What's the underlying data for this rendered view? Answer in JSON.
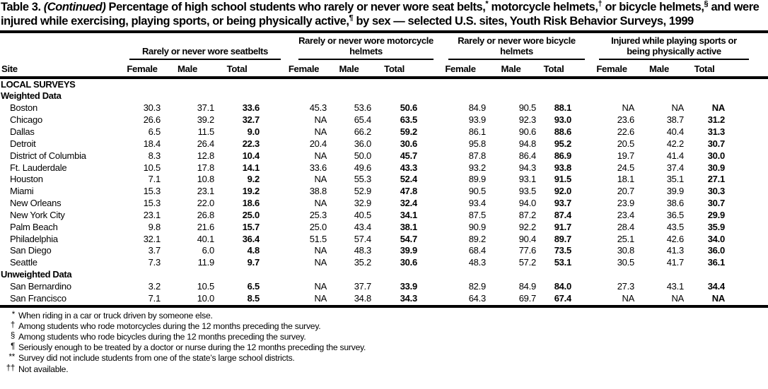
{
  "title": {
    "label": "Table 3.",
    "continued": "(Continued)",
    "segments": [
      {
        "text": " Percentage of high school students who rarely or never wore seat belts,"
      },
      {
        "sup": "*"
      },
      {
        "text": " motorcycle helmets,"
      },
      {
        "sup": "†"
      },
      {
        "text": " or bicycle helmets,"
      },
      {
        "sup": "§"
      },
      {
        "text": " and were injured while exercising, playing sports, or being physically active,"
      },
      {
        "sup": "¶"
      },
      {
        "text": " by sex — selected U.S. sites, Youth Risk Behavior Surveys, 1999"
      }
    ]
  },
  "table": {
    "site_header": "Site",
    "sub_headers": [
      "Female",
      "Male",
      "Total"
    ],
    "groups": [
      {
        "label": "Rarely or never wore seatbelts"
      },
      {
        "label": "Rarely or never wore motorcycle helmets"
      },
      {
        "label": "Rarely or never wore bicycle helmets"
      },
      {
        "label": "Injured while playing sports or being physically active"
      }
    ],
    "sections": [
      {
        "heading": "LOCAL SURVEYS",
        "rows": []
      },
      {
        "heading": "Weighted Data",
        "rows": [
          {
            "site": "Boston",
            "values": [
              "30.3",
              "37.1",
              "33.6",
              "45.3",
              "53.6",
              "50.6",
              "84.9",
              "90.5",
              "88.1",
              "NA",
              "NA",
              "NA"
            ]
          },
          {
            "site": "Chicago",
            "values": [
              "26.6",
              "39.2",
              "32.7",
              "NA",
              "65.4",
              "63.5",
              "93.9",
              "92.3",
              "93.0",
              "23.6",
              "38.7",
              "31.2"
            ]
          },
          {
            "site": "Dallas",
            "values": [
              "6.5",
              "11.5",
              "9.0",
              "NA",
              "66.2",
              "59.2",
              "86.1",
              "90.6",
              "88.6",
              "22.6",
              "40.4",
              "31.3"
            ]
          },
          {
            "site": "Detroit",
            "values": [
              "18.4",
              "26.4",
              "22.3",
              "20.4",
              "36.0",
              "30.6",
              "95.8",
              "94.8",
              "95.2",
              "20.5",
              "42.2",
              "30.7"
            ]
          },
          {
            "site": "District of Columbia",
            "values": [
              "8.3",
              "12.8",
              "10.4",
              "NA",
              "50.0",
              "45.7",
              "87.8",
              "86.4",
              "86.9",
              "19.7",
              "41.4",
              "30.0"
            ]
          },
          {
            "site": "Ft. Lauderdale",
            "values": [
              "10.5",
              "17.8",
              "14.1",
              "33.6",
              "49.6",
              "43.3",
              "93.2",
              "94.3",
              "93.8",
              "24.5",
              "37.4",
              "30.9"
            ]
          },
          {
            "site": "Houston",
            "values": [
              "7.1",
              "10.8",
              "9.2",
              "NA",
              "55.3",
              "52.4",
              "89.9",
              "93.1",
              "91.5",
              "18.1",
              "35.1",
              "27.1"
            ]
          },
          {
            "site": "Miami",
            "values": [
              "15.3",
              "23.1",
              "19.2",
              "38.8",
              "52.9",
              "47.8",
              "90.5",
              "93.5",
              "92.0",
              "20.7",
              "39.9",
              "30.3"
            ]
          },
          {
            "site": "New Orleans",
            "values": [
              "15.3",
              "22.0",
              "18.6",
              "NA",
              "32.9",
              "32.4",
              "93.4",
              "94.0",
              "93.7",
              "23.9",
              "38.6",
              "30.7"
            ]
          },
          {
            "site": "New York City",
            "values": [
              "23.1",
              "26.8",
              "25.0",
              "25.3",
              "40.5",
              "34.1",
              "87.5",
              "87.2",
              "87.4",
              "23.4",
              "36.5",
              "29.9"
            ]
          },
          {
            "site": "Palm Beach",
            "values": [
              "9.8",
              "21.6",
              "15.7",
              "25.0",
              "43.4",
              "38.1",
              "90.9",
              "92.2",
              "91.7",
              "28.4",
              "43.5",
              "35.9"
            ]
          },
          {
            "site": "Philadelphia",
            "values": [
              "32.1",
              "40.1",
              "36.4",
              "51.5",
              "57.4",
              "54.7",
              "89.2",
              "90.4",
              "89.7",
              "25.1",
              "42.6",
              "34.0"
            ]
          },
          {
            "site": "San Diego",
            "values": [
              "3.7",
              "6.0",
              "4.8",
              "NA",
              "48.3",
              "39.9",
              "68.4",
              "77.6",
              "73.5",
              "30.8",
              "41.3",
              "36.0"
            ]
          },
          {
            "site": "Seattle",
            "values": [
              "7.3",
              "11.9",
              "9.7",
              "NA",
              "35.2",
              "30.6",
              "48.3",
              "57.2",
              "53.1",
              "30.5",
              "41.7",
              "36.1"
            ]
          }
        ]
      },
      {
        "heading": "Unweighted Data",
        "rows": [
          {
            "site": "San Bernardino",
            "values": [
              "3.2",
              "10.5",
              "6.5",
              "NA",
              "37.7",
              "33.9",
              "82.9",
              "84.9",
              "84.0",
              "27.3",
              "43.1",
              "34.4"
            ]
          },
          {
            "site": "San Francisco",
            "values": [
              "7.1",
              "10.0",
              "8.5",
              "NA",
              "34.8",
              "34.3",
              "64.3",
              "69.7",
              "67.4",
              "NA",
              "NA",
              "NA"
            ]
          }
        ]
      }
    ]
  },
  "footnotes": [
    {
      "marker": "*",
      "text": "When riding in a car or truck driven by someone else."
    },
    {
      "marker": "†",
      "text": "Among students who rode motorcycles during the 12 months preceding the survey."
    },
    {
      "marker": "§",
      "text": "Among students who rode bicycles during the 12 months preceding the survey."
    },
    {
      "marker": "¶",
      "text": "Seriously enough to be treated by a doctor or nurse during the 12 months preceding the survey."
    },
    {
      "marker": "**",
      "text": "Survey did not include students from one of the state’s large school districts."
    },
    {
      "marker": "††",
      "text": "Not available."
    }
  ]
}
